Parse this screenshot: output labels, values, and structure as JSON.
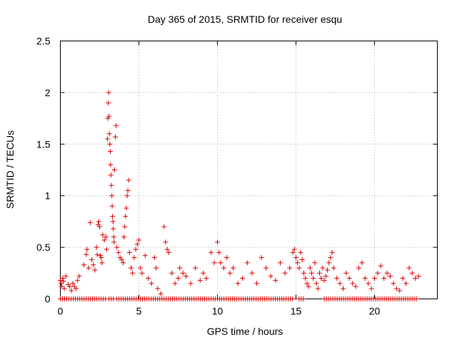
{
  "chart_data": {
    "type": "scatter",
    "title": "Day 365 of 2015, SRMTID for receiver esqu",
    "xlabel": "GPS time / hours",
    "ylabel": "SRMTID / TECUs",
    "xlim": [
      0,
      24
    ],
    "ylim": [
      0,
      2.5
    ],
    "x_ticks": [
      0,
      5,
      10,
      15,
      20
    ],
    "x_tick_labels": [
      "0",
      "5",
      "10",
      "15",
      "20"
    ],
    "y_ticks": [
      0,
      0.5,
      1,
      1.5,
      2,
      2.5
    ],
    "y_tick_labels": [
      "0",
      "0.5",
      "1",
      "1.5",
      "2",
      "2.5"
    ],
    "grid": true,
    "marker": "plus",
    "color": "#dd0000",
    "series": [
      {
        "name": "SRMTID",
        "points": [
          [
            0.0,
            0.18
          ],
          [
            0.05,
            0.15
          ],
          [
            0.1,
            0.12
          ],
          [
            0.15,
            0.2
          ],
          [
            0.2,
            0.17
          ],
          [
            0.25,
            0.1
          ],
          [
            0.35,
            0.22
          ],
          [
            0.5,
            0.14
          ],
          [
            0.6,
            0.12
          ],
          [
            0.7,
            0.08
          ],
          [
            0.8,
            0.15
          ],
          [
            0.9,
            0.12
          ],
          [
            1.0,
            0.1
          ],
          [
            1.1,
            0.18
          ],
          [
            1.2,
            0.22
          ],
          [
            1.5,
            0.33
          ],
          [
            1.65,
            0.43
          ],
          [
            1.7,
            0.48
          ],
          [
            1.8,
            0.3
          ],
          [
            1.9,
            0.74
          ],
          [
            2.0,
            0.38
          ],
          [
            2.1,
            0.33
          ],
          [
            2.2,
            0.28
          ],
          [
            2.3,
            0.5
          ],
          [
            2.35,
            0.43
          ],
          [
            2.4,
            0.72
          ],
          [
            2.45,
            0.75
          ],
          [
            2.5,
            0.7
          ],
          [
            2.55,
            0.42
          ],
          [
            2.6,
            0.4
          ],
          [
            2.65,
            0.35
          ],
          [
            2.7,
            0.62
          ],
          [
            2.8,
            0.57
          ],
          [
            2.9,
            0.6
          ],
          [
            2.95,
            0.48
          ],
          [
            3.0,
            1.55
          ],
          [
            3.02,
            1.75
          ],
          [
            3.05,
            1.9
          ],
          [
            3.08,
            2.0
          ],
          [
            3.1,
            1.77
          ],
          [
            3.12,
            1.6
          ],
          [
            3.15,
            1.5
          ],
          [
            3.18,
            1.43
          ],
          [
            3.2,
            1.3
          ],
          [
            3.22,
            1.2
          ],
          [
            3.25,
            1.1
          ],
          [
            3.28,
            1.0
          ],
          [
            3.3,
            0.9
          ],
          [
            3.32,
            0.8
          ],
          [
            3.35,
            0.75
          ],
          [
            3.37,
            0.68
          ],
          [
            3.4,
            0.6
          ],
          [
            3.42,
            0.55
          ],
          [
            3.45,
            1.25
          ],
          [
            3.5,
            1.57
          ],
          [
            3.55,
            1.68
          ],
          [
            3.6,
            0.5
          ],
          [
            3.7,
            0.45
          ],
          [
            3.8,
            0.4
          ],
          [
            3.9,
            0.38
          ],
          [
            4.0,
            0.35
          ],
          [
            4.05,
            0.6
          ],
          [
            4.1,
            0.7
          ],
          [
            4.15,
            0.8
          ],
          [
            4.2,
            0.88
          ],
          [
            4.25,
            1.0
          ],
          [
            4.3,
            1.05
          ],
          [
            4.35,
            1.15
          ],
          [
            4.4,
            0.45
          ],
          [
            4.5,
            0.3
          ],
          [
            4.6,
            0.25
          ],
          [
            4.7,
            0.4
          ],
          [
            4.8,
            0.48
          ],
          [
            4.9,
            0.53
          ],
          [
            5.0,
            0.57
          ],
          [
            5.1,
            0.3
          ],
          [
            5.2,
            0.25
          ],
          [
            5.4,
            0.42
          ],
          [
            5.6,
            0.2
          ],
          [
            5.8,
            0.15
          ],
          [
            6.0,
            0.4
          ],
          [
            6.1,
            0.3
          ],
          [
            6.2,
            0.1
          ],
          [
            6.4,
            0.05
          ],
          [
            6.6,
            0.7
          ],
          [
            6.7,
            0.55
          ],
          [
            6.8,
            0.48
          ],
          [
            6.9,
            0.45
          ],
          [
            7.1,
            0.25
          ],
          [
            7.3,
            0.15
          ],
          [
            7.5,
            0.2
          ],
          [
            7.6,
            0.3
          ],
          [
            7.8,
            0.25
          ],
          [
            8.0,
            0.22
          ],
          [
            8.3,
            0.15
          ],
          [
            8.6,
            0.3
          ],
          [
            8.9,
            0.18
          ],
          [
            9.1,
            0.25
          ],
          [
            9.3,
            0.2
          ],
          [
            9.6,
            0.45
          ],
          [
            9.8,
            0.35
          ],
          [
            10.0,
            0.55
          ],
          [
            10.1,
            0.45
          ],
          [
            10.2,
            0.35
          ],
          [
            10.4,
            0.3
          ],
          [
            10.6,
            0.4
          ],
          [
            10.8,
            0.25
          ],
          [
            11.0,
            0.3
          ],
          [
            11.3,
            0.15
          ],
          [
            11.6,
            0.2
          ],
          [
            11.9,
            0.35
          ],
          [
            12.2,
            0.25
          ],
          [
            12.5,
            0.15
          ],
          [
            12.8,
            0.4
          ],
          [
            13.1,
            0.3
          ],
          [
            13.4,
            0.22
          ],
          [
            13.7,
            0.18
          ],
          [
            14.0,
            0.35
          ],
          [
            14.3,
            0.25
          ],
          [
            14.6,
            0.3
          ],
          [
            14.8,
            0.45
          ],
          [
            14.9,
            0.48
          ],
          [
            15.0,
            0.4
          ],
          [
            15.1,
            0.35
          ],
          [
            15.2,
            0.3
          ],
          [
            15.3,
            0.45
          ],
          [
            15.4,
            0.38
          ],
          [
            15.5,
            0.25
          ],
          [
            15.6,
            0.2
          ],
          [
            15.7,
            0.15
          ],
          [
            15.8,
            0.12
          ],
          [
            15.9,
            0.3
          ],
          [
            16.0,
            0.25
          ],
          [
            16.1,
            0.2
          ],
          [
            16.2,
            0.35
          ],
          [
            16.3,
            0.15
          ],
          [
            16.4,
            0.1
          ],
          [
            16.5,
            0.25
          ],
          [
            16.6,
            0.2
          ],
          [
            16.7,
            0.3
          ],
          [
            16.8,
            0.18
          ],
          [
            16.9,
            0.22
          ],
          [
            17.0,
            0.28
          ],
          [
            17.1,
            0.35
          ],
          [
            17.2,
            0.4
          ],
          [
            17.3,
            0.45
          ],
          [
            17.4,
            0.3
          ],
          [
            17.6,
            0.2
          ],
          [
            17.8,
            0.15
          ],
          [
            18.0,
            0.1
          ],
          [
            18.2,
            0.25
          ],
          [
            18.4,
            0.2
          ],
          [
            18.6,
            0.15
          ],
          [
            18.8,
            0.12
          ],
          [
            19.0,
            0.3
          ],
          [
            19.2,
            0.35
          ],
          [
            19.4,
            0.2
          ],
          [
            19.6,
            0.15
          ],
          [
            19.8,
            0.1
          ],
          [
            20.0,
            0.2
          ],
          [
            20.2,
            0.25
          ],
          [
            20.4,
            0.32
          ],
          [
            20.6,
            0.2
          ],
          [
            20.8,
            0.25
          ],
          [
            21.0,
            0.22
          ],
          [
            21.2,
            0.15
          ],
          [
            21.4,
            0.1
          ],
          [
            21.6,
            0.08
          ],
          [
            21.8,
            0.2
          ],
          [
            22.0,
            0.15
          ],
          [
            22.2,
            0.3
          ],
          [
            22.4,
            0.25
          ],
          [
            22.6,
            0.2
          ],
          [
            22.8,
            0.22
          ]
        ]
      }
    ],
    "zero_band": {
      "description": "dense run of points at SRMTID = 0",
      "segments": [
        [
          0.0,
          1.0
        ],
        [
          1.1,
          3.0
        ],
        [
          3.1,
          3.5
        ],
        [
          3.6,
          14.9
        ],
        [
          15.2,
          15.6
        ],
        [
          16.8,
          22.7
        ]
      ],
      "value": 0
    }
  }
}
